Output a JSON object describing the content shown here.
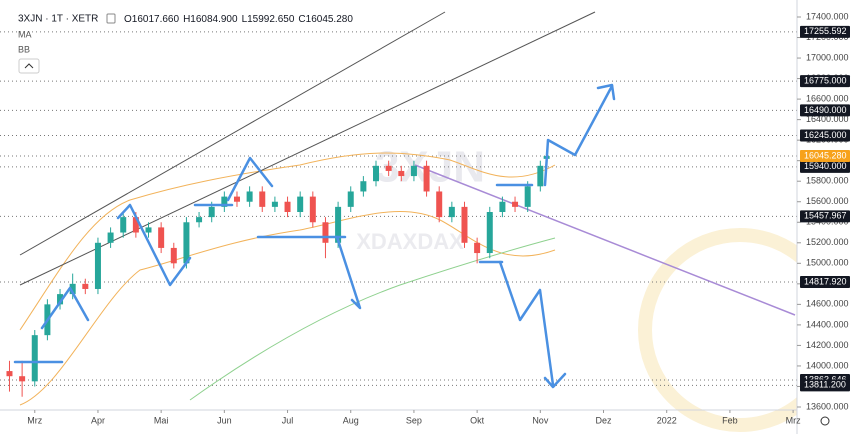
{
  "chart_data": {
    "type": "candlestick",
    "symbol": "3XJN · 1T · XETR",
    "ohlc_legend": [
      "O16017.660",
      "H16084.900",
      "L15992.650",
      "C16045.280"
    ],
    "indicators": [
      "MA",
      "BB"
    ],
    "watermark": "3XJN",
    "watermark_sub": "XDAXDAX",
    "up_color": "#26a69a",
    "down_color": "#ef5350",
    "x": [
      -0.4,
      -0.2,
      0.0,
      0.2,
      0.4,
      0.6,
      0.8,
      1.0,
      1.2,
      1.4,
      1.6,
      1.8,
      2.0,
      2.2,
      2.4,
      2.6,
      2.8,
      3.0,
      3.2,
      3.4,
      3.6,
      3.8,
      4.0,
      4.2,
      4.4,
      4.6,
      4.8,
      5.0,
      5.2,
      5.4,
      5.6,
      5.8,
      6.0,
      6.2,
      6.4,
      6.6,
      6.8,
      7.0,
      7.2,
      7.4,
      7.6,
      7.8,
      8.0,
      8.1
    ],
    "open": [
      13950,
      13900,
      13850,
      14300,
      14600,
      14700,
      14800,
      14750,
      15200,
      15300,
      15450,
      15300,
      15350,
      15150,
      15000,
      15400,
      15450,
      15550,
      15650,
      15600,
      15700,
      15550,
      15600,
      15500,
      15650,
      15400,
      15200,
      15550,
      15700,
      15800,
      15950,
      15900,
      15850,
      15950,
      15700,
      15450,
      15550,
      15200,
      15100,
      15500,
      15600,
      15550,
      15750,
      16017.66
    ],
    "high": [
      14050,
      14050,
      14350,
      14650,
      14750,
      14900,
      14850,
      15250,
      15350,
      15500,
      15500,
      15400,
      15400,
      15200,
      15450,
      15500,
      15600,
      15700,
      15700,
      15750,
      15750,
      15650,
      15650,
      15700,
      15700,
      15450,
      15600,
      15750,
      15850,
      16000,
      16000,
      15950,
      16000,
      16000,
      15750,
      15600,
      15600,
      15250,
      15550,
      15650,
      15650,
      15800,
      16000,
      16084.9
    ],
    "low": [
      13750,
      13700,
      13800,
      14250,
      14550,
      14650,
      14700,
      14700,
      15150,
      15250,
      15250,
      15250,
      15100,
      14950,
      14950,
      15350,
      15400,
      15500,
      15550,
      15550,
      15500,
      15500,
      15450,
      15450,
      15350,
      15050,
      15150,
      15500,
      15650,
      15750,
      15850,
      15800,
      15800,
      15650,
      15400,
      15400,
      15150,
      15000,
      15050,
      15450,
      15500,
      15500,
      15700,
      15992.65
    ],
    "close": [
      13900,
      13850,
      14300,
      14600,
      14700,
      14800,
      14750,
      15200,
      15300,
      15450,
      15300,
      15350,
      15150,
      15000,
      15400,
      15450,
      15550,
      15650,
      15600,
      15700,
      15550,
      15600,
      15500,
      15650,
      15400,
      15200,
      15550,
      15700,
      15800,
      15950,
      15900,
      15850,
      15950,
      15700,
      15450,
      15550,
      15200,
      15100,
      15500,
      15600,
      15550,
      15750,
      15950,
      16045.28
    ],
    "xlim": [
      -0.55,
      12.03
    ],
    "xticks": [
      {
        "value": 0,
        "label": "Mrz"
      },
      {
        "value": 1,
        "label": "Apr"
      },
      {
        "value": 2,
        "label": "Mai"
      },
      {
        "value": 3,
        "label": "Jun"
      },
      {
        "value": 4,
        "label": "Jul"
      },
      {
        "value": 5,
        "label": "Aug"
      },
      {
        "value": 6,
        "label": "Sep"
      },
      {
        "value": 7,
        "label": "Okt"
      },
      {
        "value": 8,
        "label": "Nov"
      },
      {
        "value": 9,
        "label": "Dez"
      },
      {
        "value": 10,
        "label": "2022"
      },
      {
        "value": 11,
        "label": "Feb"
      },
      {
        "value": 12,
        "label": "Mrz"
      }
    ],
    "ylim": [
      13600,
      17400
    ],
    "yticks": [
      {
        "value": 13600,
        "label": "13600.000"
      },
      {
        "value": 13800,
        "label": "13800.000"
      },
      {
        "value": 14000,
        "label": "14000.000"
      },
      {
        "value": 14200,
        "label": "14200.000"
      },
      {
        "value": 14400,
        "label": "14400.000"
      },
      {
        "value": 14600,
        "label": "14600.000"
      },
      {
        "value": 14800,
        "label": "14800.000"
      },
      {
        "value": 15000,
        "label": "15000.000"
      },
      {
        "value": 15200,
        "label": "15200.000"
      },
      {
        "value": 15400,
        "label": "15400.000"
      },
      {
        "value": 15600,
        "label": "15600.000"
      },
      {
        "value": 15800,
        "label": "15800.000"
      },
      {
        "value": 16000,
        "label": "16000.000"
      },
      {
        "value": 16200,
        "label": "16200.000"
      },
      {
        "value": 16400,
        "label": "16400.000"
      },
      {
        "value": 16600,
        "label": "16600.000"
      },
      {
        "value": 16800,
        "label": "16800.000"
      },
      {
        "value": 17000,
        "label": "17000.000"
      },
      {
        "value": 17200,
        "label": "17200.000"
      },
      {
        "value": 17400,
        "label": "17400.000"
      }
    ],
    "levels": [
      17255.592,
      {
        "value": 16775,
        "label": "16775.000"
      },
      {
        "value": 16490,
        "label": "16490.000"
      },
      {
        "value": 16245,
        "label": "16245.000"
      },
      {
        "value": 15940,
        "label": "15940.000"
      },
      15457.967,
      {
        "value": 14817.92,
        "label": "14817.920"
      },
      13863.646,
      {
        "value": 13811.2,
        "label": "13811.200"
      }
    ],
    "level_color": "#131722",
    "last_price": {
      "value": 16045.28,
      "label": "16045.280"
    },
    "last_price_color": "#f7a21b"
  }
}
